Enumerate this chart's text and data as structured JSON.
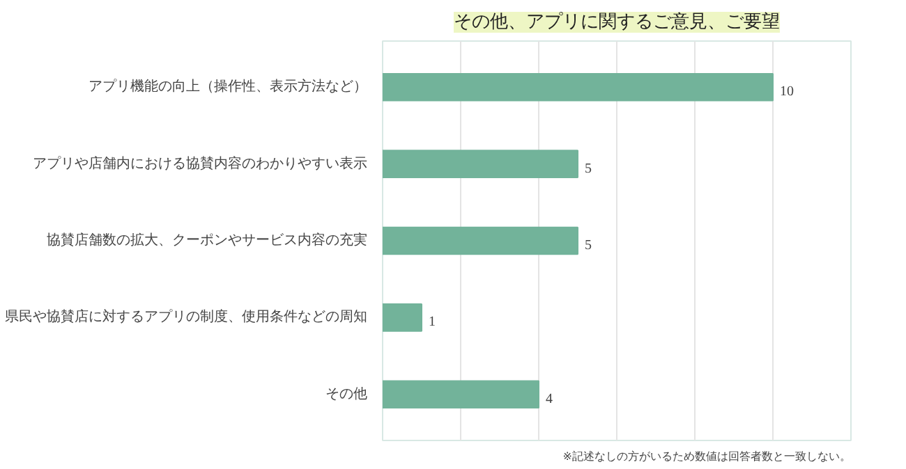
{
  "chart_data": {
    "type": "bar",
    "orientation": "horizontal",
    "title": "その他、アプリに関するご意見、ご要望",
    "categories": [
      "アプリ機能の向上（操作性、表示方法など）",
      "アプリや店舗内における協賛内容のわかりやすい表示",
      "協賛店舗数の拡大、クーポンやサービス内容の充実",
      "県民や協賛店に対するアプリの制度、使用条件などの周知",
      "その他"
    ],
    "values": [
      10,
      5,
      5,
      1,
      4
    ],
    "color": "#72b39a",
    "xlim": [
      0,
      12
    ],
    "xticks": [
      {
        "value": 0,
        "label": null
      },
      {
        "value": 2,
        "label": null
      },
      {
        "value": 4,
        "label": null
      },
      {
        "value": 6,
        "label": null
      },
      {
        "value": 8,
        "label": null
      },
      {
        "value": 10,
        "label": null
      },
      {
        "value": 12,
        "label": null
      }
    ],
    "tick_labels": "y",
    "grid": "x",
    "data_labels": true,
    "annotations": [
      "※記述なしの方がいるため数値は回答者数と一致しない。"
    ]
  }
}
